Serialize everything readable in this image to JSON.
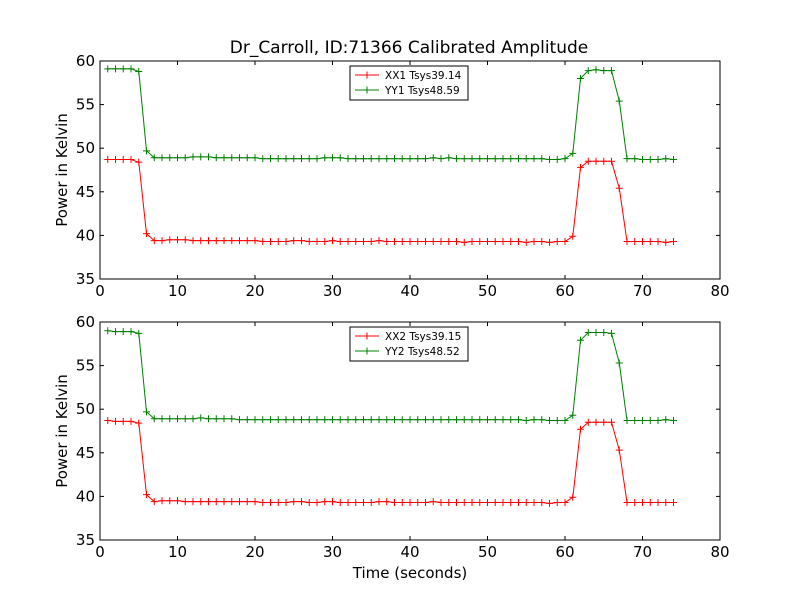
{
  "title": "Dr_Carroll, ID:71366 Calibrated Amplitude",
  "chart_data": [
    {
      "type": "line",
      "ylabel": "Power in Kelvin",
      "xlabel": "",
      "xlim": [
        0,
        80
      ],
      "ylim": [
        35,
        60
      ],
      "xticks": [
        "0",
        "10",
        "20",
        "30",
        "40",
        "50",
        "60",
        "70",
        "80"
      ],
      "yticks": [
        "35",
        "40",
        "45",
        "50",
        "55",
        "60"
      ],
      "legend": "top-center",
      "series": [
        {
          "name": "XX1 Tsys39.14",
          "color": "#ff0000",
          "x": [
            1,
            2,
            3,
            4,
            5,
            6,
            7,
            8,
            9,
            10,
            11,
            12,
            13,
            14,
            15,
            16,
            17,
            18,
            19,
            20,
            21,
            22,
            23,
            24,
            25,
            26,
            27,
            28,
            29,
            30,
            31,
            32,
            33,
            34,
            35,
            36,
            37,
            38,
            39,
            40,
            41,
            42,
            43,
            44,
            45,
            46,
            47,
            48,
            49,
            50,
            51,
            52,
            53,
            54,
            55,
            56,
            57,
            58,
            59,
            60,
            61,
            62,
            63,
            64,
            65,
            66,
            67,
            68,
            69,
            70,
            71,
            72,
            73,
            74
          ],
          "y": [
            48.7,
            48.7,
            48.7,
            48.7,
            48.4,
            40.2,
            39.4,
            39.4,
            39.5,
            39.5,
            39.5,
            39.4,
            39.4,
            39.4,
            39.4,
            39.4,
            39.4,
            39.4,
            39.4,
            39.4,
            39.3,
            39.3,
            39.3,
            39.3,
            39.4,
            39.4,
            39.3,
            39.3,
            39.3,
            39.4,
            39.3,
            39.3,
            39.3,
            39.3,
            39.3,
            39.4,
            39.3,
            39.3,
            39.3,
            39.3,
            39.3,
            39.3,
            39.3,
            39.3,
            39.3,
            39.3,
            39.2,
            39.3,
            39.3,
            39.3,
            39.3,
            39.3,
            39.3,
            39.3,
            39.2,
            39.3,
            39.3,
            39.2,
            39.3,
            39.3,
            39.9,
            47.8,
            48.5,
            48.5,
            48.5,
            48.5,
            45.4,
            39.3,
            39.3,
            39.3,
            39.3,
            39.3,
            39.2,
            39.3
          ]
        },
        {
          "name": "YY1 Tsys48.59",
          "color": "#008000",
          "x": [
            1,
            2,
            3,
            4,
            5,
            6,
            7,
            8,
            9,
            10,
            11,
            12,
            13,
            14,
            15,
            16,
            17,
            18,
            19,
            20,
            21,
            22,
            23,
            24,
            25,
            26,
            27,
            28,
            29,
            30,
            31,
            32,
            33,
            34,
            35,
            36,
            37,
            38,
            39,
            40,
            41,
            42,
            43,
            44,
            45,
            46,
            47,
            48,
            49,
            50,
            51,
            52,
            53,
            54,
            55,
            56,
            57,
            58,
            59,
            60,
            61,
            62,
            63,
            64,
            65,
            66,
            67,
            68,
            69,
            70,
            71,
            72,
            73,
            74
          ],
          "y": [
            59.1,
            59.1,
            59.1,
            59.1,
            58.8,
            49.7,
            48.9,
            48.9,
            48.9,
            48.9,
            48.9,
            49.0,
            49.0,
            49.0,
            48.9,
            48.9,
            48.9,
            48.9,
            48.9,
            48.9,
            48.8,
            48.8,
            48.8,
            48.8,
            48.8,
            48.8,
            48.8,
            48.8,
            48.9,
            48.9,
            48.9,
            48.8,
            48.8,
            48.8,
            48.8,
            48.8,
            48.8,
            48.8,
            48.8,
            48.8,
            48.8,
            48.8,
            48.9,
            48.8,
            48.9,
            48.8,
            48.8,
            48.8,
            48.8,
            48.8,
            48.8,
            48.8,
            48.8,
            48.8,
            48.8,
            48.8,
            48.8,
            48.7,
            48.7,
            48.8,
            49.4,
            58.0,
            58.9,
            59.0,
            58.9,
            58.9,
            55.4,
            48.8,
            48.8,
            48.7,
            48.7,
            48.7,
            48.8,
            48.7
          ]
        }
      ]
    },
    {
      "type": "line",
      "ylabel": "Power in Kelvin",
      "xlabel": "Time (seconds)",
      "xlim": [
        0,
        80
      ],
      "ylim": [
        35,
        60
      ],
      "xticks": [
        "0",
        "10",
        "20",
        "30",
        "40",
        "50",
        "60",
        "70",
        "80"
      ],
      "yticks": [
        "35",
        "40",
        "45",
        "50",
        "55",
        "60"
      ],
      "legend": "top-center",
      "series": [
        {
          "name": "XX2 Tsys39.15",
          "color": "#ff0000",
          "x": [
            1,
            2,
            3,
            4,
            5,
            6,
            7,
            8,
            9,
            10,
            11,
            12,
            13,
            14,
            15,
            16,
            17,
            18,
            19,
            20,
            21,
            22,
            23,
            24,
            25,
            26,
            27,
            28,
            29,
            30,
            31,
            32,
            33,
            34,
            35,
            36,
            37,
            38,
            39,
            40,
            41,
            42,
            43,
            44,
            45,
            46,
            47,
            48,
            49,
            50,
            51,
            52,
            53,
            54,
            55,
            56,
            57,
            58,
            59,
            60,
            61,
            62,
            63,
            64,
            65,
            66,
            67,
            68,
            69,
            70,
            71,
            72,
            73,
            74
          ],
          "y": [
            48.7,
            48.6,
            48.6,
            48.6,
            48.4,
            40.2,
            39.4,
            39.5,
            39.5,
            39.5,
            39.4,
            39.4,
            39.4,
            39.4,
            39.4,
            39.4,
            39.4,
            39.4,
            39.4,
            39.4,
            39.3,
            39.3,
            39.3,
            39.3,
            39.4,
            39.4,
            39.3,
            39.3,
            39.4,
            39.4,
            39.3,
            39.3,
            39.3,
            39.3,
            39.3,
            39.4,
            39.4,
            39.3,
            39.3,
            39.3,
            39.3,
            39.3,
            39.4,
            39.3,
            39.3,
            39.3,
            39.3,
            39.3,
            39.3,
            39.3,
            39.3,
            39.3,
            39.3,
            39.3,
            39.3,
            39.3,
            39.3,
            39.2,
            39.3,
            39.3,
            39.9,
            47.7,
            48.5,
            48.5,
            48.5,
            48.5,
            45.3,
            39.3,
            39.3,
            39.3,
            39.3,
            39.3,
            39.3,
            39.3
          ]
        },
        {
          "name": "YY2 Tsys48.52",
          "color": "#008000",
          "x": [
            1,
            2,
            3,
            4,
            5,
            6,
            7,
            8,
            9,
            10,
            11,
            12,
            13,
            14,
            15,
            16,
            17,
            18,
            19,
            20,
            21,
            22,
            23,
            24,
            25,
            26,
            27,
            28,
            29,
            30,
            31,
            32,
            33,
            34,
            35,
            36,
            37,
            38,
            39,
            40,
            41,
            42,
            43,
            44,
            45,
            46,
            47,
            48,
            49,
            50,
            51,
            52,
            53,
            54,
            55,
            56,
            57,
            58,
            59,
            60,
            61,
            62,
            63,
            64,
            65,
            66,
            67,
            68,
            69,
            70,
            71,
            72,
            73,
            74
          ],
          "y": [
            59.0,
            58.9,
            58.9,
            58.9,
            58.7,
            49.7,
            48.9,
            48.9,
            48.9,
            48.9,
            48.9,
            48.9,
            49.0,
            48.9,
            48.9,
            48.9,
            48.9,
            48.8,
            48.8,
            48.8,
            48.8,
            48.8,
            48.8,
            48.8,
            48.8,
            48.8,
            48.8,
            48.8,
            48.8,
            48.8,
            48.8,
            48.8,
            48.8,
            48.8,
            48.8,
            48.8,
            48.8,
            48.8,
            48.8,
            48.8,
            48.8,
            48.8,
            48.8,
            48.8,
            48.8,
            48.8,
            48.8,
            48.8,
            48.8,
            48.8,
            48.8,
            48.8,
            48.8,
            48.8,
            48.7,
            48.8,
            48.8,
            48.7,
            48.7,
            48.7,
            49.3,
            57.9,
            58.8,
            58.8,
            58.8,
            58.7,
            55.3,
            48.7,
            48.7,
            48.7,
            48.7,
            48.7,
            48.8,
            48.7
          ]
        }
      ]
    }
  ]
}
